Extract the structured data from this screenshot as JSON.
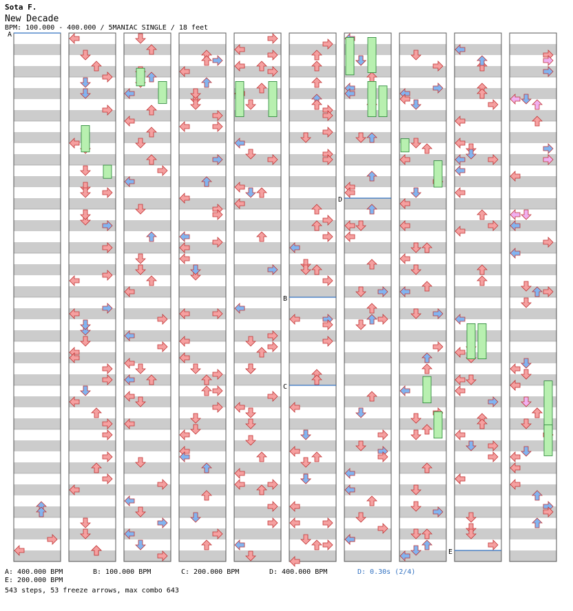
{
  "header": {
    "artist": "Sota F.",
    "title": "New Decade",
    "meta": "BPM: 100.000 - 400.000 / 5MANIAC SINGLE / 18 feet"
  },
  "legend": {
    "a": "A: 400.000 BPM",
    "b": "B: 100.000 BPM",
    "c": "C: 200.000 BPM",
    "d": "D: 400.000 BPM",
    "delay": "D: 0.30s (2/4)",
    "e": "E: 200.000 BPM"
  },
  "stats": "543 steps, 53 freeze arrows, max combo 643",
  "chart_data": {
    "type": "step-chart",
    "difficulty": "MANIAC",
    "mode": "SINGLE",
    "feet": 18,
    "steps": 543,
    "freeze_arrows": 53,
    "max_combo": 643,
    "columns": 10,
    "lanes": [
      "left",
      "down",
      "up",
      "right"
    ],
    "bpm_markers": [
      {
        "label": "A",
        "bpm": 400,
        "col": 0,
        "meas": 0
      },
      {
        "label": "B",
        "bpm": 100,
        "col": 5,
        "meas": 6
      },
      {
        "label": "C",
        "bpm": 200,
        "col": 5,
        "meas": 8
      },
      {
        "label": "D",
        "bpm": 400,
        "col": 6,
        "meas": 3.75
      },
      {
        "label": "E",
        "bpm": 200,
        "col": 8,
        "meas": 11.75
      }
    ],
    "colors": {
      "quarter": "#f5a0a0",
      "eighth": "#82b4f0",
      "sixteenth": "#f0b0f0",
      "twelfth": "#f0f020",
      "freeze": "#b8f0b0",
      "stripe": "#cccccc",
      "bpm_line": "#3070c0"
    }
  }
}
